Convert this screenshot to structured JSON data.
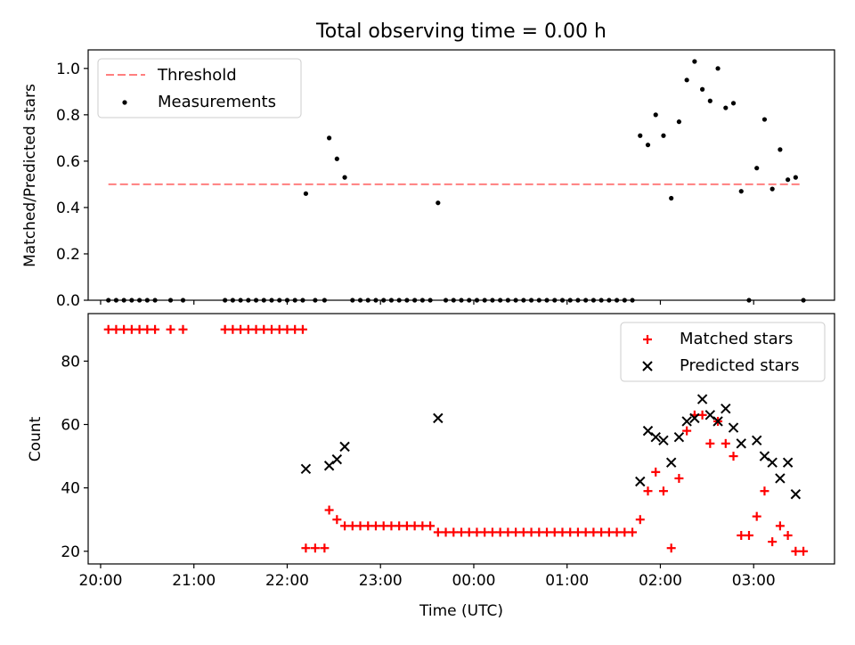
{
  "title": "Total observing time = 0.00 h",
  "colors": {
    "threshold": "#ff7f7f",
    "measurements": "#000000",
    "matched": "#ff0000",
    "predicted": "#000000"
  },
  "chart_data": [
    {
      "type": "scatter",
      "ylabel": "Matched/Predicted stars",
      "ylim": [
        0,
        1.08
      ],
      "yticks": [
        "0.0",
        "0.2",
        "0.4",
        "0.6",
        "0.8",
        "1.0"
      ],
      "xlim": [
        "19:52",
        "03:52"
      ],
      "legend_placement": "upper-left",
      "threshold": {
        "name": "Threshold",
        "value": 0.5,
        "x_range": [
          "20:05",
          "03:30"
        ]
      },
      "series": [
        {
          "name": "Measurements",
          "points": [
            [
              "20:05",
              0
            ],
            [
              "20:10",
              0
            ],
            [
              "20:15",
              0
            ],
            [
              "20:20",
              0
            ],
            [
              "20:25",
              0
            ],
            [
              "20:30",
              0
            ],
            [
              "20:35",
              0
            ],
            [
              "20:45",
              0
            ],
            [
              "20:53",
              0
            ],
            [
              "21:20",
              0
            ],
            [
              "21:25",
              0
            ],
            [
              "21:30",
              0
            ],
            [
              "21:35",
              0
            ],
            [
              "21:40",
              0
            ],
            [
              "21:45",
              0
            ],
            [
              "21:50",
              0
            ],
            [
              "21:55",
              0
            ],
            [
              "22:00",
              0
            ],
            [
              "22:05",
              0
            ],
            [
              "22:10",
              0
            ],
            [
              "22:12",
              0.46
            ],
            [
              "22:18",
              0
            ],
            [
              "22:24",
              0
            ],
            [
              "22:27",
              0.7
            ],
            [
              "22:32",
              0.61
            ],
            [
              "22:37",
              0.53
            ],
            [
              "22:42",
              0
            ],
            [
              "22:47",
              0
            ],
            [
              "22:52",
              0
            ],
            [
              "22:57",
              0
            ],
            [
              "23:02",
              0
            ],
            [
              "23:07",
              0
            ],
            [
              "23:12",
              0
            ],
            [
              "23:17",
              0
            ],
            [
              "23:22",
              0
            ],
            [
              "23:27",
              0
            ],
            [
              "23:32",
              0
            ],
            [
              "23:37",
              0.42
            ],
            [
              "23:42",
              0
            ],
            [
              "23:47",
              0
            ],
            [
              "23:52",
              0
            ],
            [
              "23:57",
              0
            ],
            [
              "00:02",
              0
            ],
            [
              "00:07",
              0
            ],
            [
              "00:12",
              0
            ],
            [
              "00:17",
              0
            ],
            [
              "00:22",
              0
            ],
            [
              "00:27",
              0
            ],
            [
              "00:32",
              0
            ],
            [
              "00:37",
              0
            ],
            [
              "00:42",
              0
            ],
            [
              "00:47",
              0
            ],
            [
              "00:52",
              0
            ],
            [
              "00:57",
              0
            ],
            [
              "01:02",
              0
            ],
            [
              "01:07",
              0
            ],
            [
              "01:12",
              0
            ],
            [
              "01:17",
              0
            ],
            [
              "01:22",
              0
            ],
            [
              "01:27",
              0
            ],
            [
              "01:32",
              0
            ],
            [
              "01:37",
              0
            ],
            [
              "01:42",
              0
            ],
            [
              "01:47",
              0.71
            ],
            [
              "01:52",
              0.67
            ],
            [
              "01:57",
              0.8
            ],
            [
              "02:02",
              0.71
            ],
            [
              "02:07",
              0.44
            ],
            [
              "02:12",
              0.77
            ],
            [
              "02:17",
              0.95
            ],
            [
              "02:22",
              1.03
            ],
            [
              "02:27",
              0.91
            ],
            [
              "02:32",
              0.86
            ],
            [
              "02:37",
              1.0
            ],
            [
              "02:42",
              0.83
            ],
            [
              "02:47",
              0.85
            ],
            [
              "02:52",
              0.47
            ],
            [
              "02:57",
              0
            ],
            [
              "03:02",
              0.57
            ],
            [
              "03:07",
              0.78
            ],
            [
              "03:12",
              0.48
            ],
            [
              "03:17",
              0.65
            ],
            [
              "03:22",
              0.52
            ],
            [
              "03:27",
              0.53
            ],
            [
              "03:32",
              0
            ]
          ]
        }
      ]
    },
    {
      "type": "scatter",
      "xlabel": "Time (UTC)",
      "ylabel": "Count",
      "ylim": [
        16,
        95
      ],
      "yticks": [
        "20",
        "40",
        "60",
        "80"
      ],
      "xlim": [
        "19:52",
        "03:52"
      ],
      "xticks": [
        "20:00",
        "21:00",
        "22:00",
        "23:00",
        "00:00",
        "01:00",
        "02:00",
        "03:00"
      ],
      "legend_placement": "upper-right",
      "series": [
        {
          "name": "Matched stars",
          "points": [
            [
              "20:05",
              90
            ],
            [
              "20:10",
              90
            ],
            [
              "20:15",
              90
            ],
            [
              "20:20",
              90
            ],
            [
              "20:25",
              90
            ],
            [
              "20:30",
              90
            ],
            [
              "20:35",
              90
            ],
            [
              "20:45",
              90
            ],
            [
              "20:53",
              90
            ],
            [
              "21:20",
              90
            ],
            [
              "21:25",
              90
            ],
            [
              "21:30",
              90
            ],
            [
              "21:35",
              90
            ],
            [
              "21:40",
              90
            ],
            [
              "21:45",
              90
            ],
            [
              "21:50",
              90
            ],
            [
              "21:55",
              90
            ],
            [
              "22:00",
              90
            ],
            [
              "22:05",
              90
            ],
            [
              "22:10",
              90
            ],
            [
              "22:12",
              21
            ],
            [
              "22:18",
              21
            ],
            [
              "22:24",
              21
            ],
            [
              "22:27",
              33
            ],
            [
              "22:32",
              30
            ],
            [
              "22:37",
              28
            ],
            [
              "22:42",
              28
            ],
            [
              "22:47",
              28
            ],
            [
              "22:52",
              28
            ],
            [
              "22:57",
              28
            ],
            [
              "23:02",
              28
            ],
            [
              "23:07",
              28
            ],
            [
              "23:12",
              28
            ],
            [
              "23:17",
              28
            ],
            [
              "23:22",
              28
            ],
            [
              "23:27",
              28
            ],
            [
              "23:32",
              28
            ],
            [
              "23:37",
              26
            ],
            [
              "23:42",
              26
            ],
            [
              "23:47",
              26
            ],
            [
              "23:52",
              26
            ],
            [
              "23:57",
              26
            ],
            [
              "00:02",
              26
            ],
            [
              "00:07",
              26
            ],
            [
              "00:12",
              26
            ],
            [
              "00:17",
              26
            ],
            [
              "00:22",
              26
            ],
            [
              "00:27",
              26
            ],
            [
              "00:32",
              26
            ],
            [
              "00:37",
              26
            ],
            [
              "00:42",
              26
            ],
            [
              "00:47",
              26
            ],
            [
              "00:52",
              26
            ],
            [
              "00:57",
              26
            ],
            [
              "01:02",
              26
            ],
            [
              "01:07",
              26
            ],
            [
              "01:12",
              26
            ],
            [
              "01:17",
              26
            ],
            [
              "01:22",
              26
            ],
            [
              "01:27",
              26
            ],
            [
              "01:32",
              26
            ],
            [
              "01:37",
              26
            ],
            [
              "01:42",
              26
            ],
            [
              "01:47",
              30
            ],
            [
              "01:52",
              39
            ],
            [
              "01:57",
              45
            ],
            [
              "02:02",
              39
            ],
            [
              "02:07",
              21
            ],
            [
              "02:12",
              43
            ],
            [
              "02:17",
              58
            ],
            [
              "02:22",
              63
            ],
            [
              "02:27",
              63
            ],
            [
              "02:32",
              54
            ],
            [
              "02:37",
              61
            ],
            [
              "02:42",
              54
            ],
            [
              "02:47",
              50
            ],
            [
              "02:52",
              25
            ],
            [
              "02:57",
              25
            ],
            [
              "03:02",
              31
            ],
            [
              "03:07",
              39
            ],
            [
              "03:12",
              23
            ],
            [
              "03:17",
              28
            ],
            [
              "03:22",
              25
            ],
            [
              "03:27",
              20
            ],
            [
              "03:32",
              20
            ]
          ]
        },
        {
          "name": "Predicted stars",
          "points": [
            [
              "22:12",
              46
            ],
            [
              "22:27",
              47
            ],
            [
              "22:32",
              49
            ],
            [
              "22:37",
              53
            ],
            [
              "23:37",
              62
            ],
            [
              "01:47",
              42
            ],
            [
              "01:52",
              58
            ],
            [
              "01:57",
              56
            ],
            [
              "02:02",
              55
            ],
            [
              "02:07",
              48
            ],
            [
              "02:12",
              56
            ],
            [
              "02:17",
              61
            ],
            [
              "02:22",
              62
            ],
            [
              "02:27",
              68
            ],
            [
              "02:32",
              63
            ],
            [
              "02:37",
              61
            ],
            [
              "02:42",
              65
            ],
            [
              "02:47",
              59
            ],
            [
              "02:52",
              54
            ],
            [
              "03:02",
              55
            ],
            [
              "03:07",
              50
            ],
            [
              "03:12",
              48
            ],
            [
              "03:17",
              43
            ],
            [
              "03:22",
              48
            ],
            [
              "03:27",
              38
            ]
          ]
        }
      ]
    }
  ]
}
